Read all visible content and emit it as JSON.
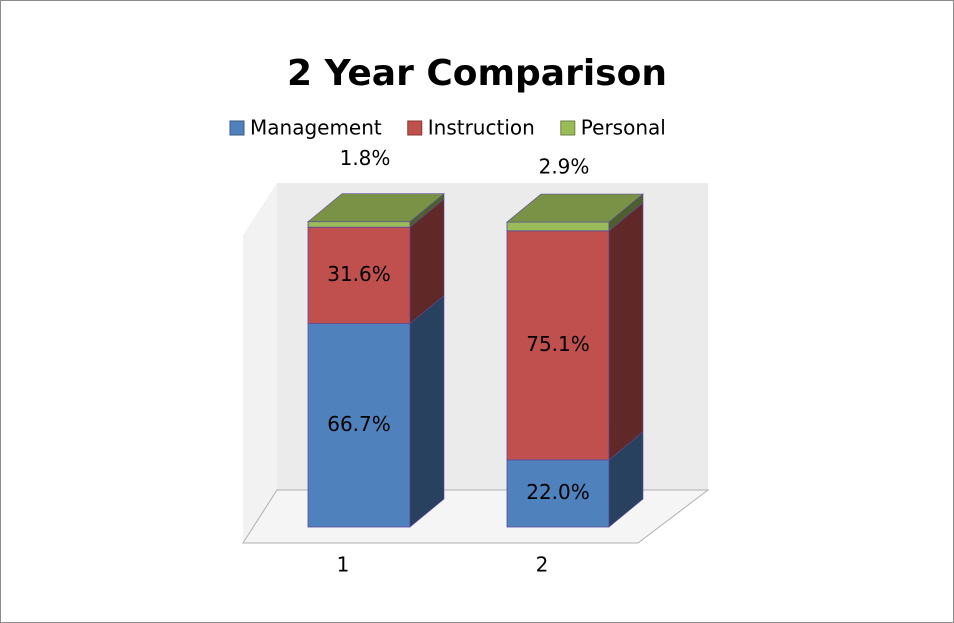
{
  "chart_data": {
    "type": "stacked-bar-3d",
    "title": "2 Year Comparison",
    "categories": [
      "1",
      "2"
    ],
    "series": [
      {
        "name": "Management",
        "color": "#4f81bd",
        "values": [
          66.7,
          22.0
        ],
        "value_labels": [
          "66.7%",
          "22.0%"
        ]
      },
      {
        "name": "Instruction",
        "color": "#c0504d",
        "values": [
          31.6,
          75.1
        ],
        "value_labels": [
          "31.6%",
          "75.1%"
        ]
      },
      {
        "name": "Personal",
        "color": "#9bbb59",
        "values": [
          1.8,
          2.9
        ],
        "value_labels": [
          "1.8%",
          "2.9%"
        ]
      }
    ],
    "legend": "top"
  }
}
